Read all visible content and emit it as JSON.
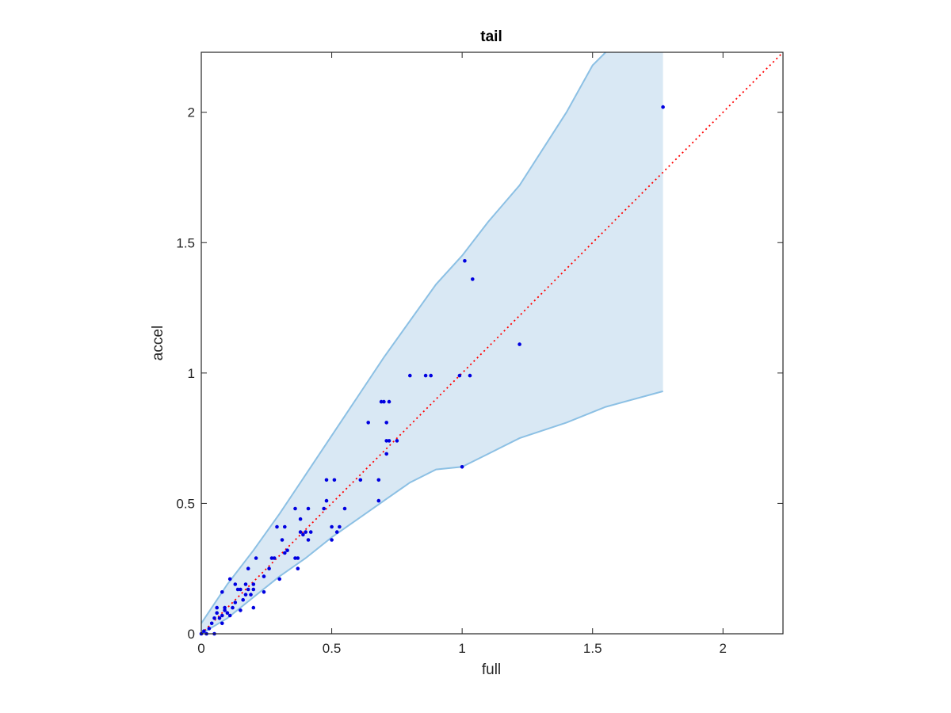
{
  "chart_data": {
    "type": "scatter",
    "title": "tail",
    "xlabel": "full",
    "ylabel": "accel",
    "xlim": [
      0,
      2.23
    ],
    "ylim": [
      0,
      2.23
    ],
    "xticks": [
      0,
      0.5,
      1,
      1.5,
      2
    ],
    "yticks": [
      0,
      0.5,
      1,
      1.5,
      2
    ],
    "xtick_labels": [
      "0",
      "0.5",
      "1",
      "1.5",
      "2"
    ],
    "ytick_labels": [
      "0",
      "0.5",
      "1",
      "1.5",
      "2"
    ],
    "grid": false,
    "colors": {
      "points": "#0000e0",
      "reference_line": "#ff0000",
      "band_fill": "#d9e8f4",
      "band_edge": "#8cc0e4",
      "axes": "#262626"
    },
    "reference_line": {
      "style": "dotted",
      "x": [
        0,
        2.23
      ],
      "y": [
        0,
        2.23
      ]
    },
    "band": {
      "x": [
        0,
        0.1,
        0.2,
        0.3,
        0.4,
        0.5,
        0.6,
        0.7,
        0.8,
        0.9,
        1.0,
        1.1,
        1.22,
        1.4,
        1.5,
        1.55,
        1.77
      ],
      "upper": [
        0.04,
        0.19,
        0.32,
        0.46,
        0.61,
        0.76,
        0.91,
        1.06,
        1.2,
        1.34,
        1.45,
        1.58,
        1.72,
        2.0,
        2.18,
        2.23,
        2.23
      ],
      "lower": [
        0,
        0.06,
        0.14,
        0.22,
        0.29,
        0.37,
        0.44,
        0.51,
        0.58,
        0.63,
        0.64,
        0.69,
        0.75,
        0.81,
        0.85,
        0.87,
        0.93
      ]
    },
    "points": [
      [
        0.0,
        0.0
      ],
      [
        0.01,
        0.01
      ],
      [
        0.02,
        0.0
      ],
      [
        0.03,
        0.02
      ],
      [
        0.04,
        0.04
      ],
      [
        0.05,
        0.06
      ],
      [
        0.05,
        0.0
      ],
      [
        0.06,
        0.08
      ],
      [
        0.06,
        0.1
      ],
      [
        0.07,
        0.06
      ],
      [
        0.08,
        0.07
      ],
      [
        0.08,
        0.04
      ],
      [
        0.08,
        0.16
      ],
      [
        0.09,
        0.09
      ],
      [
        0.09,
        0.1
      ],
      [
        0.1,
        0.08
      ],
      [
        0.11,
        0.07
      ],
      [
        0.11,
        0.21
      ],
      [
        0.12,
        0.1
      ],
      [
        0.13,
        0.12
      ],
      [
        0.13,
        0.19
      ],
      [
        0.14,
        0.17
      ],
      [
        0.15,
        0.09
      ],
      [
        0.15,
        0.17
      ],
      [
        0.16,
        0.13
      ],
      [
        0.17,
        0.15
      ],
      [
        0.17,
        0.19
      ],
      [
        0.18,
        0.17
      ],
      [
        0.18,
        0.25
      ],
      [
        0.19,
        0.15
      ],
      [
        0.2,
        0.17
      ],
      [
        0.2,
        0.1
      ],
      [
        0.2,
        0.19
      ],
      [
        0.21,
        0.29
      ],
      [
        0.24,
        0.16
      ],
      [
        0.24,
        0.22
      ],
      [
        0.26,
        0.25
      ],
      [
        0.27,
        0.29
      ],
      [
        0.28,
        0.29
      ],
      [
        0.29,
        0.41
      ],
      [
        0.3,
        0.21
      ],
      [
        0.31,
        0.36
      ],
      [
        0.32,
        0.41
      ],
      [
        0.32,
        0.31
      ],
      [
        0.33,
        0.32
      ],
      [
        0.36,
        0.29
      ],
      [
        0.36,
        0.48
      ],
      [
        0.37,
        0.25
      ],
      [
        0.37,
        0.29
      ],
      [
        0.38,
        0.44
      ],
      [
        0.38,
        0.39
      ],
      [
        0.39,
        0.38
      ],
      [
        0.4,
        0.39
      ],
      [
        0.41,
        0.48
      ],
      [
        0.41,
        0.36
      ],
      [
        0.42,
        0.39
      ],
      [
        0.47,
        0.48
      ],
      [
        0.48,
        0.59
      ],
      [
        0.48,
        0.51
      ],
      [
        0.5,
        0.41
      ],
      [
        0.5,
        0.36
      ],
      [
        0.51,
        0.59
      ],
      [
        0.52,
        0.39
      ],
      [
        0.53,
        0.41
      ],
      [
        0.55,
        0.48
      ],
      [
        0.61,
        0.59
      ],
      [
        0.64,
        0.81
      ],
      [
        0.68,
        0.59
      ],
      [
        0.68,
        0.51
      ],
      [
        0.69,
        0.89
      ],
      [
        0.7,
        0.89
      ],
      [
        0.71,
        0.69
      ],
      [
        0.71,
        0.81
      ],
      [
        0.71,
        0.74
      ],
      [
        0.72,
        0.89
      ],
      [
        0.72,
        0.74
      ],
      [
        0.75,
        0.74
      ],
      [
        0.8,
        0.99
      ],
      [
        0.86,
        0.99
      ],
      [
        0.88,
        0.99
      ],
      [
        0.99,
        0.99
      ],
      [
        1.0,
        0.64
      ],
      [
        1.01,
        1.43
      ],
      [
        1.03,
        0.99
      ],
      [
        1.04,
        1.36
      ],
      [
        1.22,
        1.11
      ],
      [
        1.77,
        2.02
      ]
    ]
  }
}
